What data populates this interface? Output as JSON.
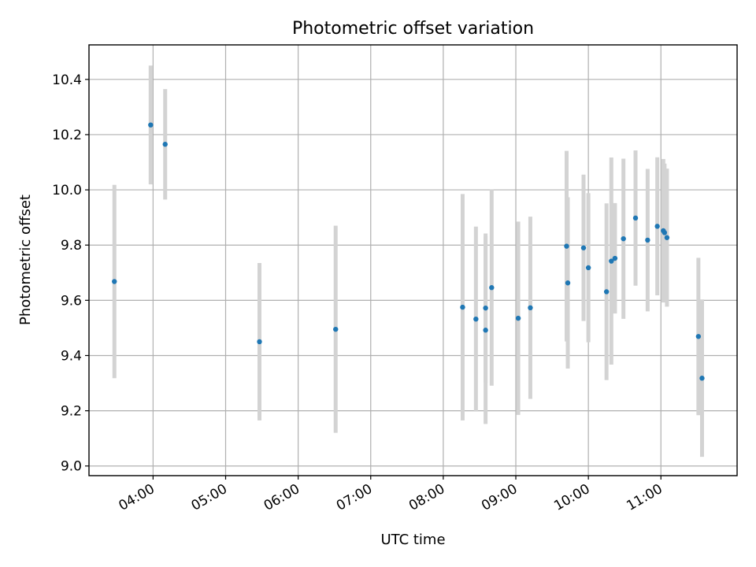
{
  "chart_data": {
    "type": "scatter",
    "title": "Photometric offset variation",
    "xlabel": "UTC time",
    "ylabel": "Photometric offset",
    "x_tick_labels": [
      "04:00",
      "05:00",
      "06:00",
      "07:00",
      "08:00",
      "09:00",
      "10:00",
      "11:00"
    ],
    "x_tick_hours": [
      4,
      5,
      6,
      7,
      8,
      9,
      10,
      11
    ],
    "y_ticks": [
      9.0,
      9.2,
      9.4,
      9.6,
      9.8,
      10.0,
      10.2,
      10.4
    ],
    "y_tick_labels": [
      "9.0",
      "9.2",
      "9.4",
      "9.6",
      "9.8",
      "10.0",
      "10.2",
      "10.4"
    ],
    "xlim": [
      "03:07",
      "12:03"
    ],
    "ylim": [
      8.965,
      10.525
    ],
    "grid": true,
    "colors": {
      "point": "#1f77b4",
      "errorbar": "#d3d3d3"
    },
    "series": [
      {
        "points": [
          {
            "x": "03:28",
            "y": 9.668,
            "yerr": 0.35
          },
          {
            "x": "03:58",
            "y": 10.235,
            "yerr": 0.215
          },
          {
            "x": "04:10",
            "y": 10.165,
            "yerr": 0.2
          },
          {
            "x": "05:28",
            "y": 9.45,
            "yerr": 0.285
          },
          {
            "x": "06:31",
            "y": 9.495,
            "yerr": 0.375
          },
          {
            "x": "08:16",
            "y": 9.575,
            "yerr": 0.41
          },
          {
            "x": "08:27",
            "y": 9.532,
            "yerr": 0.335
          },
          {
            "x": "08:35",
            "y": 9.572,
            "yerr": 0.27
          },
          {
            "x": "08:35",
            "y": 9.492,
            "yerr": 0.34
          },
          {
            "x": "08:40",
            "y": 9.646,
            "yerr": 0.355
          },
          {
            "x": "09:02",
            "y": 9.535,
            "yerr": 0.35
          },
          {
            "x": "09:12",
            "y": 9.573,
            "yerr": 0.33
          },
          {
            "x": "09:42",
            "y": 9.796,
            "yerr": 0.345
          },
          {
            "x": "09:43",
            "y": 9.663,
            "yerr": 0.31
          },
          {
            "x": "09:56",
            "y": 9.79,
            "yerr": 0.265
          },
          {
            "x": "10:00",
            "y": 9.718,
            "yerr": 0.27
          },
          {
            "x": "10:15",
            "y": 9.631,
            "yerr": 0.32
          },
          {
            "x": "10:19",
            "y": 9.742,
            "yerr": 0.375
          },
          {
            "x": "10:22",
            "y": 9.752,
            "yerr": 0.2
          },
          {
            "x": "10:29",
            "y": 9.823,
            "yerr": 0.29
          },
          {
            "x": "10:39",
            "y": 9.898,
            "yerr": 0.245
          },
          {
            "x": "10:49",
            "y": 9.818,
            "yerr": 0.258
          },
          {
            "x": "10:57",
            "y": 9.868,
            "yerr": 0.25
          },
          {
            "x": "11:02",
            "y": 9.852,
            "yerr": 0.26
          },
          {
            "x": "11:03",
            "y": 9.845,
            "yerr": 0.25
          },
          {
            "x": "11:05",
            "y": 9.827,
            "yerr": 0.25
          },
          {
            "x": "11:31",
            "y": 9.469,
            "yerr": 0.285
          },
          {
            "x": "11:34",
            "y": 9.318,
            "yerr": 0.285
          }
        ]
      }
    ]
  }
}
